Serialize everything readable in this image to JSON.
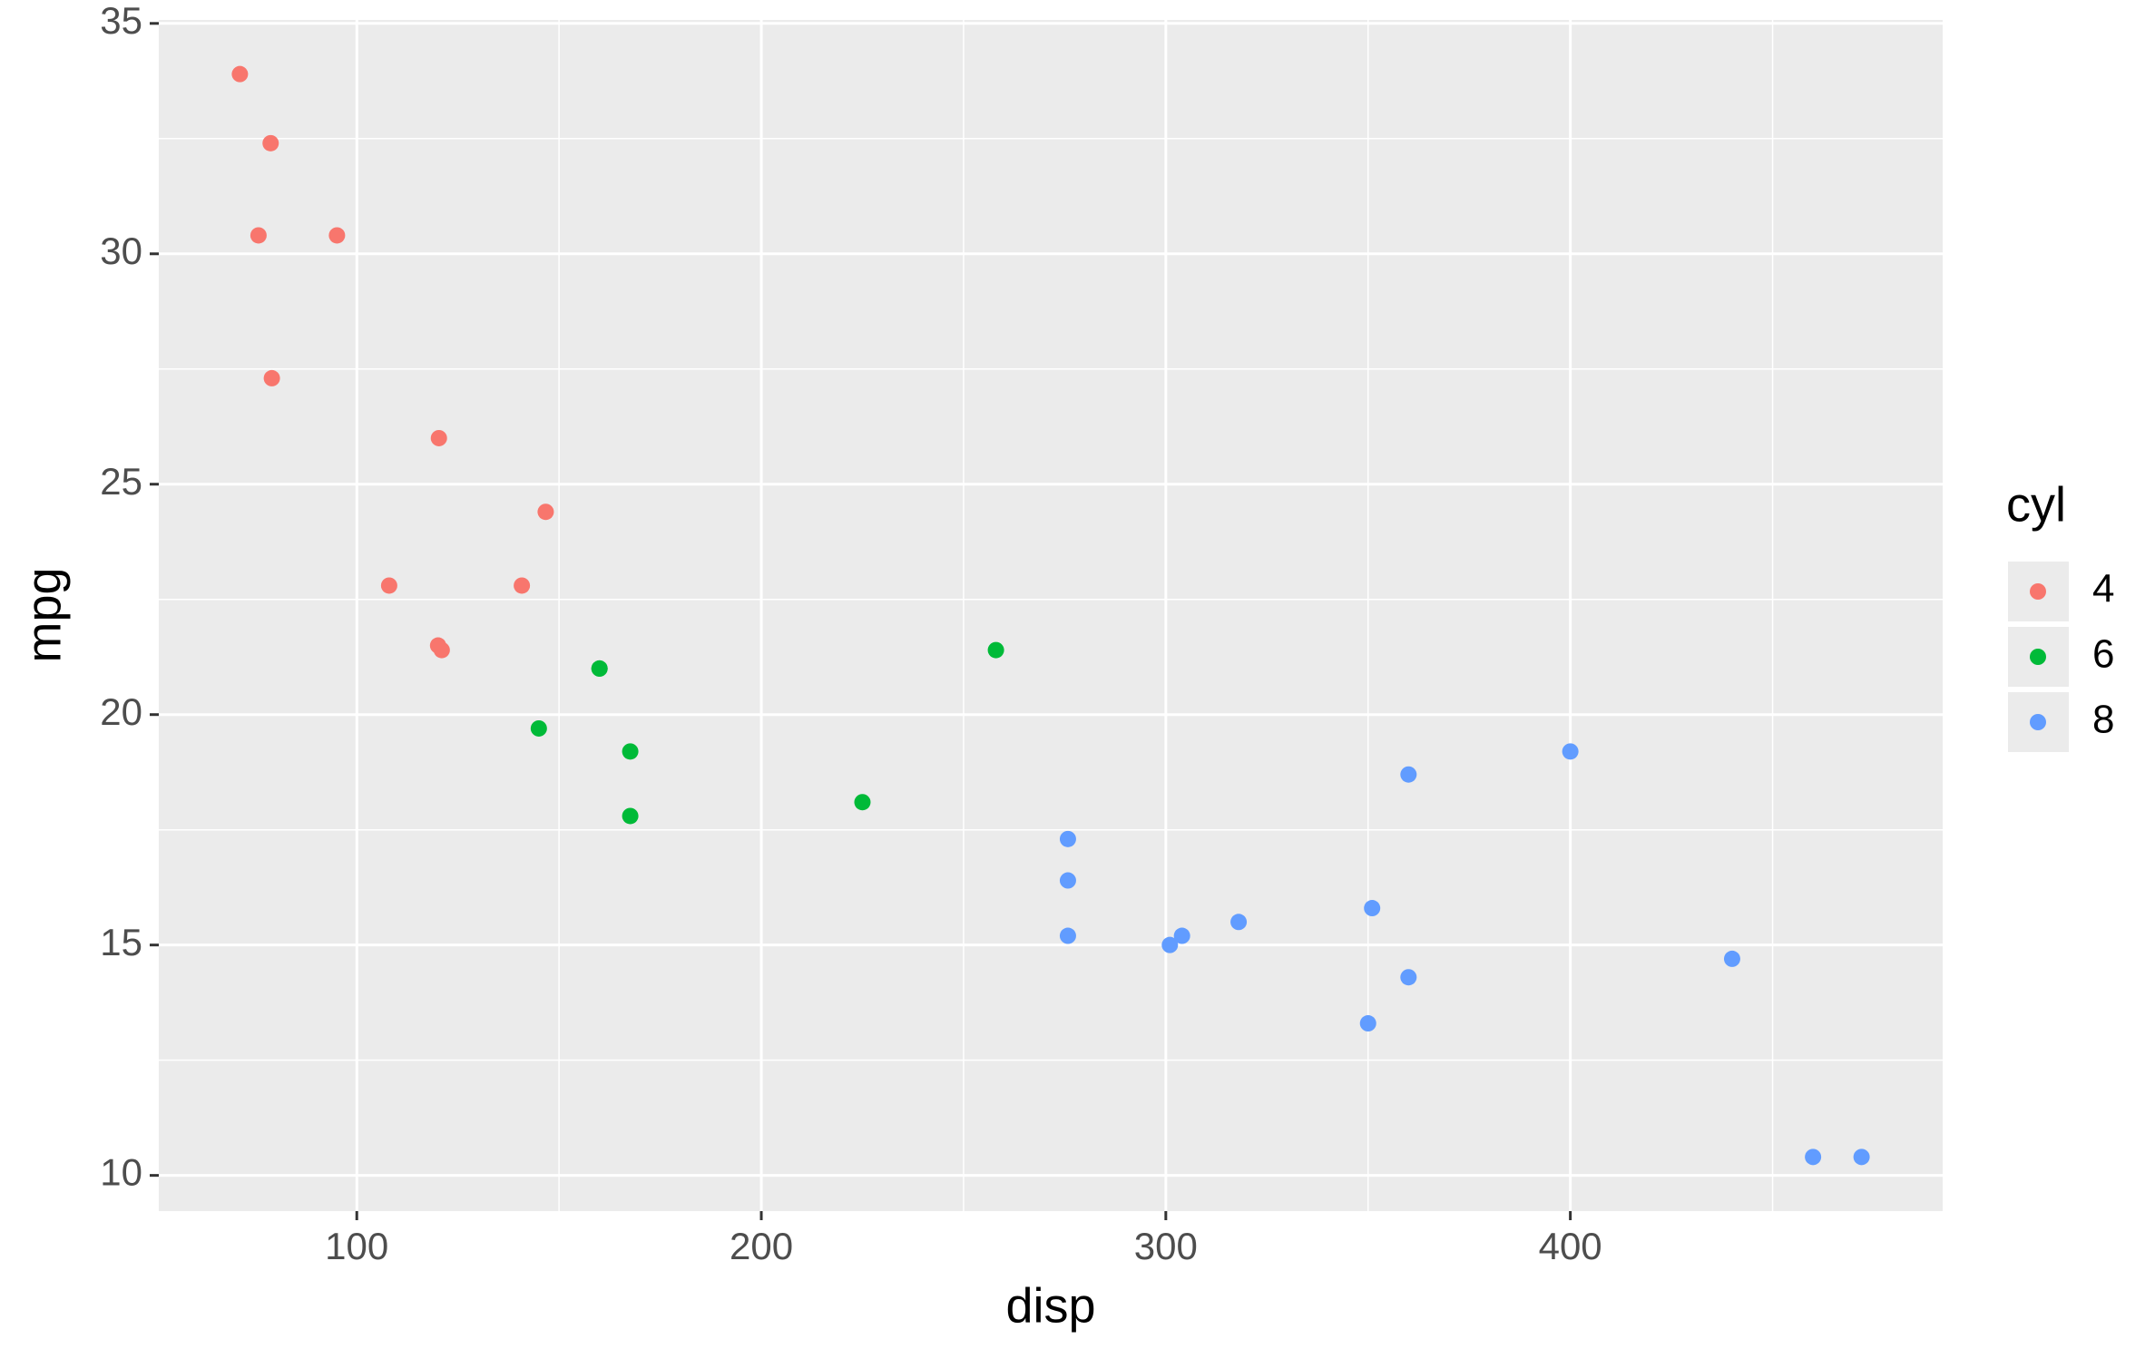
{
  "chart_data": {
    "type": "scatter",
    "x_label": "disp",
    "y_label": "mpg",
    "legend_title": "cyl",
    "xlim": [
      51.05,
      492.05
    ],
    "ylim": [
      9.225,
      35.075
    ],
    "xticks": [
      100,
      200,
      300,
      400
    ],
    "yticks": [
      10,
      15,
      20,
      25,
      30,
      35
    ],
    "grid": true,
    "legend_position": "right",
    "series": [
      {
        "name": "4",
        "color": "#F8766D",
        "x": [
          108,
          146.7,
          140.8,
          78.7,
          75.7,
          71.1,
          120.1,
          79,
          120.3,
          95.1,
          121
        ],
        "values": [
          22.8,
          24.4,
          22.8,
          32.4,
          30.4,
          33.9,
          21.5,
          27.3,
          26,
          30.4,
          21.4
        ]
      },
      {
        "name": "6",
        "color": "#00BA38",
        "x": [
          160,
          160,
          258,
          225,
          167.6,
          167.6,
          145
        ],
        "values": [
          21,
          21,
          21.4,
          18.1,
          19.2,
          17.8,
          19.7
        ]
      },
      {
        "name": "8",
        "color": "#619CFF",
        "x": [
          360,
          360,
          275.8,
          275.8,
          275.8,
          472,
          460,
          440,
          318,
          304,
          350,
          400,
          351,
          301
        ],
        "values": [
          18.7,
          14.3,
          16.4,
          17.3,
          15.2,
          10.4,
          10.4,
          14.7,
          15.5,
          15.2,
          13.3,
          19.2,
          15.8,
          15
        ]
      }
    ]
  }
}
